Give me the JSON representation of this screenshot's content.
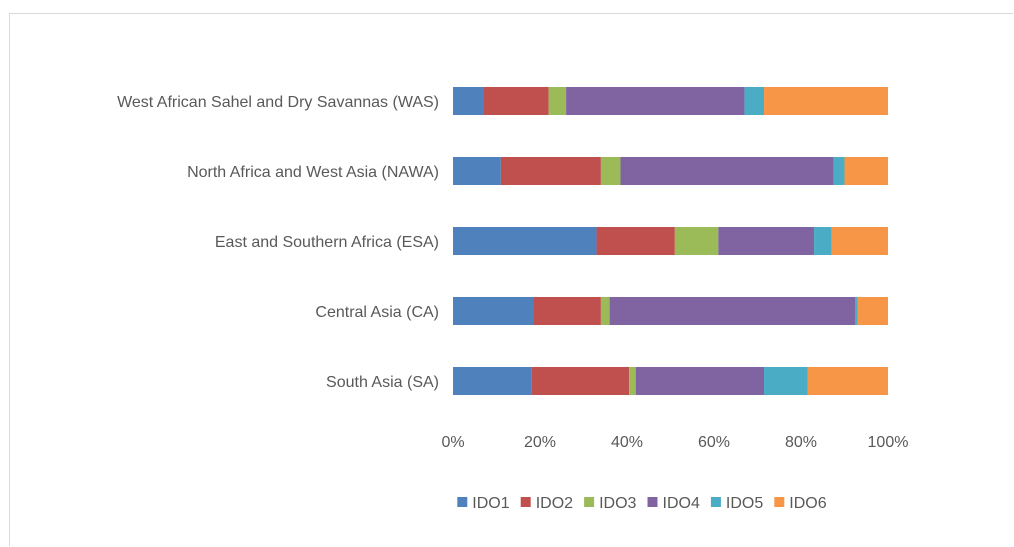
{
  "chart_data": {
    "type": "bar",
    "orientation": "horizontal",
    "stacked": "percent",
    "categories": [
      "West African Sahel and Dry Savannas (WAS)",
      "North Africa and West Asia (NAWA)",
      "East and Southern Africa (ESA)",
      "Central Asia (CA)",
      "South Asia (SA)"
    ],
    "series": [
      {
        "name": "IDO1",
        "color": "#4f81bd",
        "values": [
          7,
          11,
          33,
          18.5,
          18
        ]
      },
      {
        "name": "IDO2",
        "color": "#c0504d",
        "values": [
          15,
          23,
          18,
          15.5,
          22.5
        ]
      },
      {
        "name": "IDO3",
        "color": "#9bbb59",
        "values": [
          4,
          4.5,
          10,
          2,
          1.5
        ]
      },
      {
        "name": "IDO4",
        "color": "#8064a2",
        "values": [
          41,
          49,
          22,
          56.5,
          29.5
        ]
      },
      {
        "name": "IDO5",
        "color": "#4bacc6",
        "values": [
          4.5,
          2.5,
          4,
          0.5,
          10
        ]
      },
      {
        "name": "IDO6",
        "color": "#f79646",
        "values": [
          28.5,
          10,
          13,
          7,
          18.5
        ]
      }
    ],
    "xlim": [
      0,
      100
    ],
    "x_ticks": [
      "0%",
      "20%",
      "40%",
      "60%",
      "80%",
      "100%"
    ],
    "title": "",
    "xlabel": "",
    "ylabel": "",
    "grid": false,
    "legend_position": "bottom"
  }
}
